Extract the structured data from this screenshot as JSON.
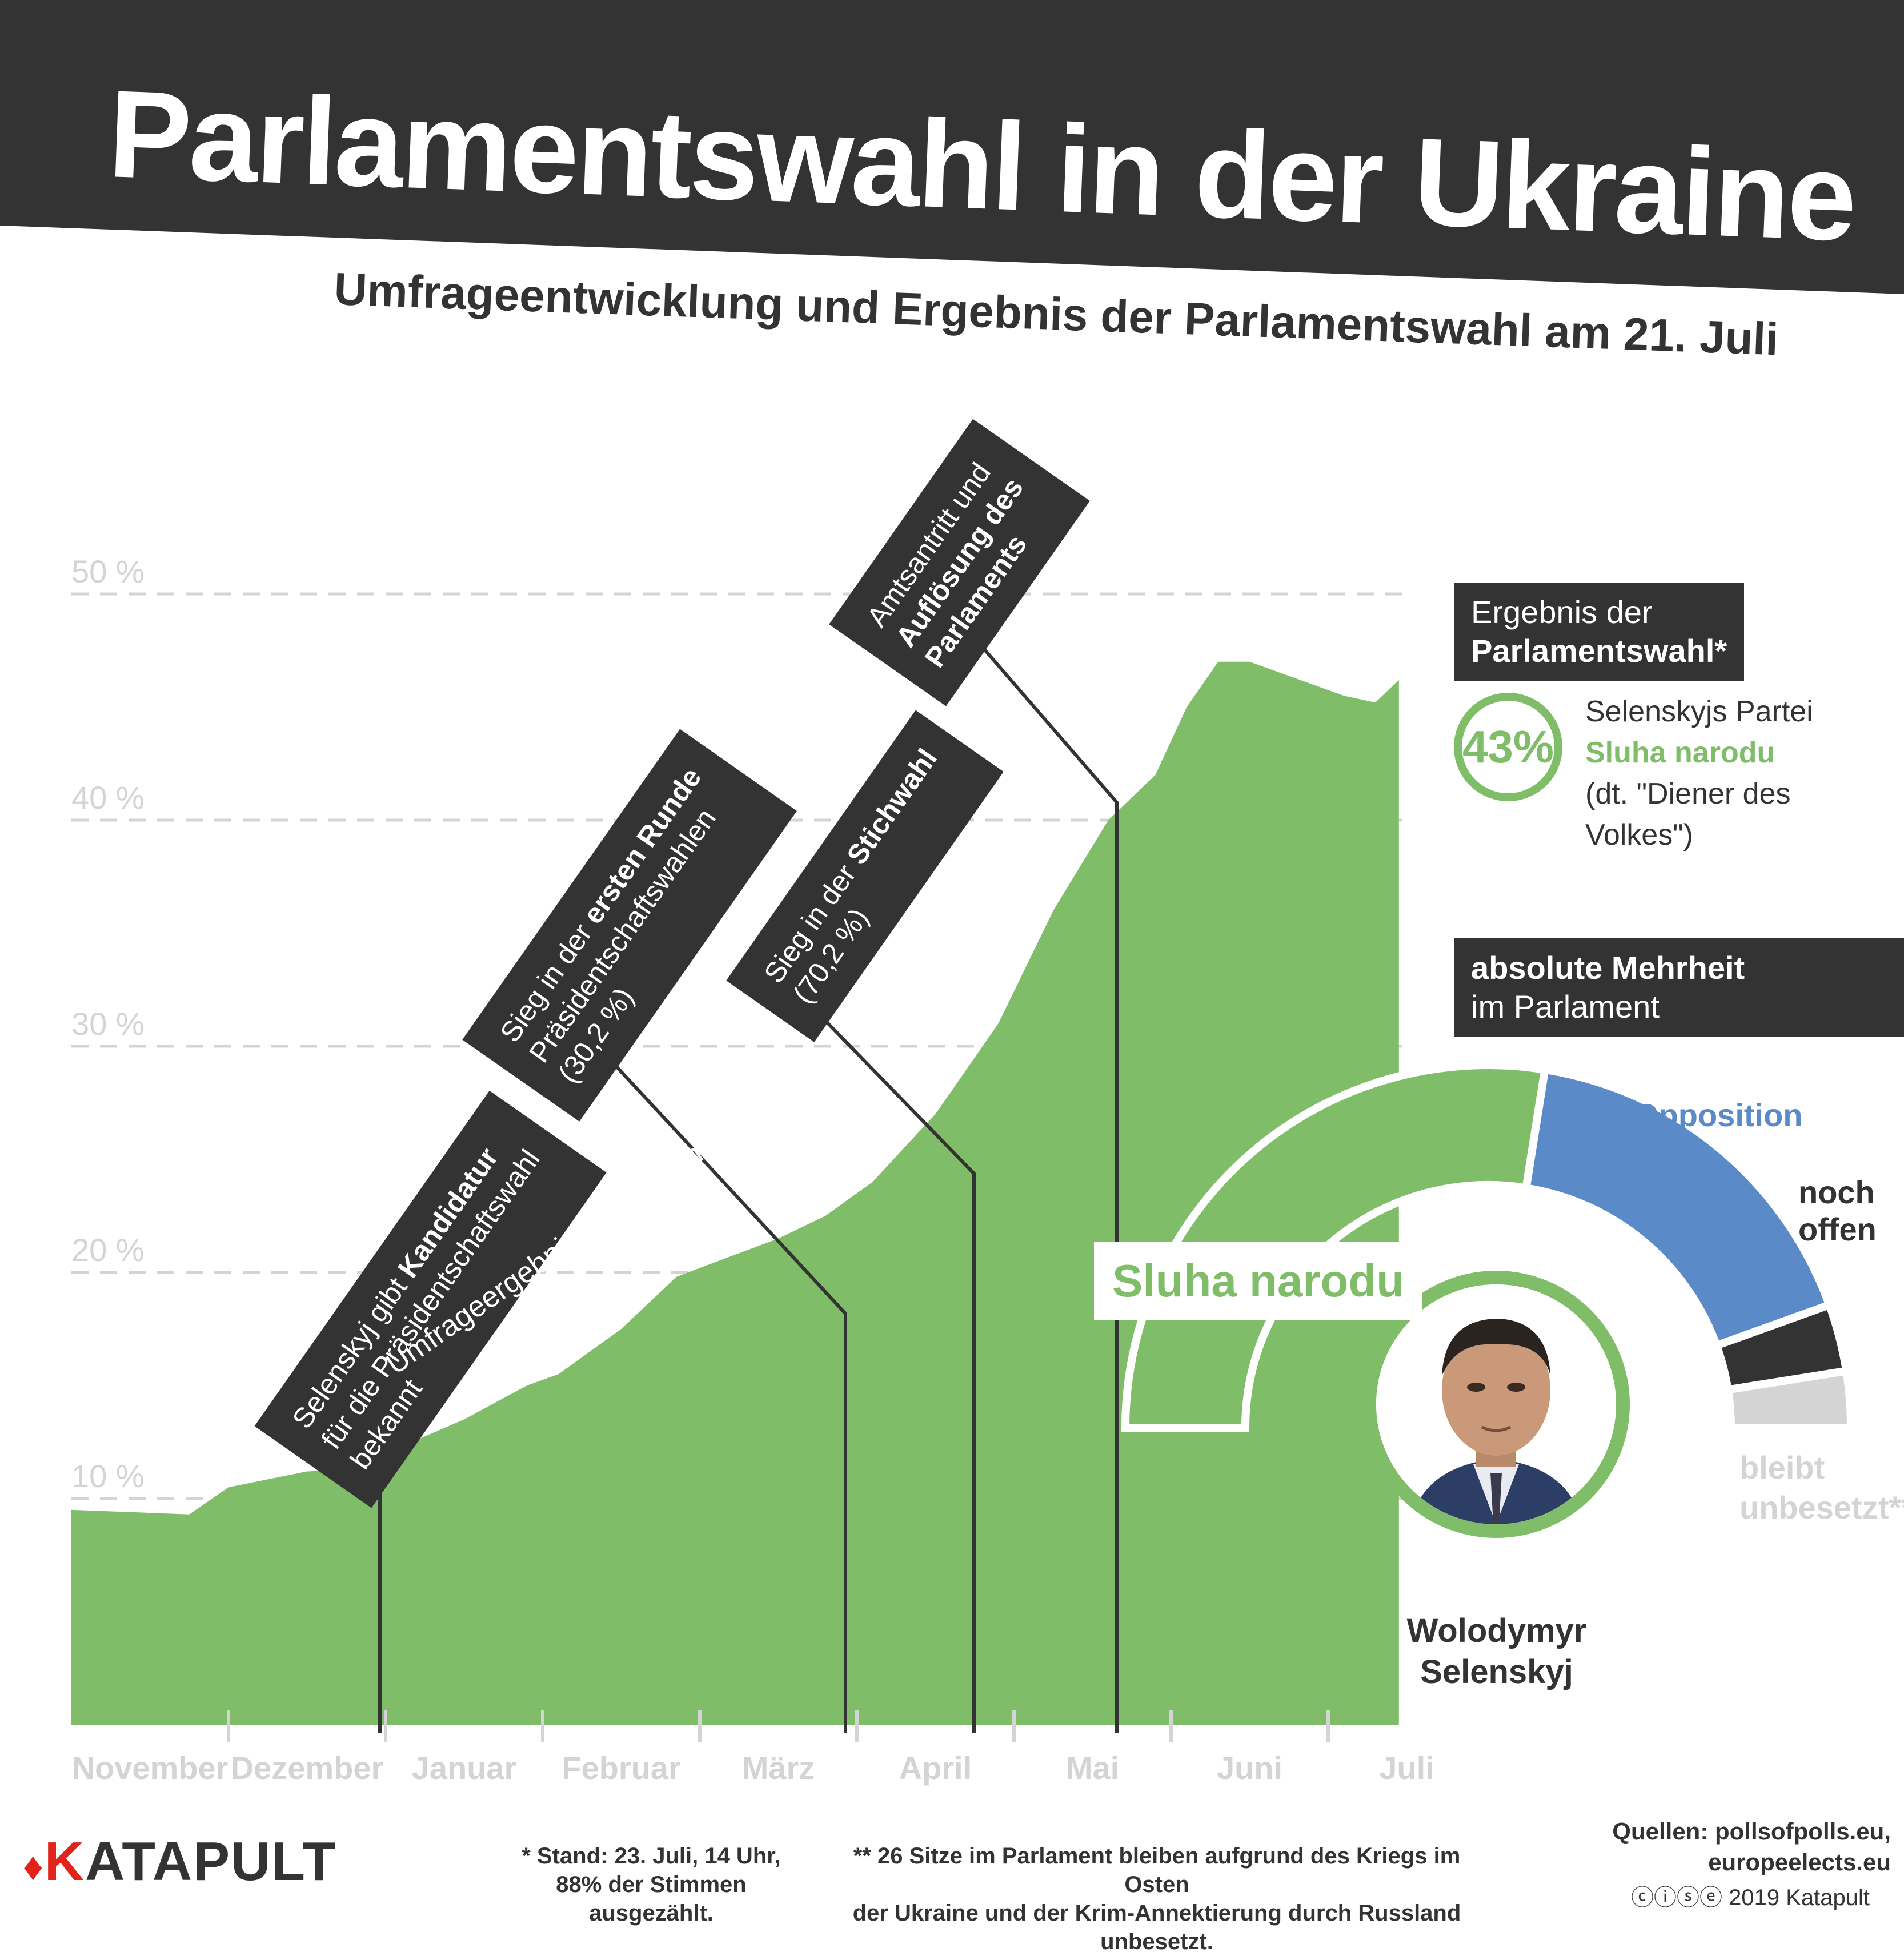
{
  "title": "Parlamentswahl in der Ukraine",
  "subtitle": "Umfrageentwicklung und Ergebnis der Parlamentswahl am 21. Juli",
  "chart_data": {
    "type": "area",
    "series": [
      {
        "name": "Umfrageergebnisse der Sluha narodu",
        "x": [
          0,
          0.75,
          1,
          1.5,
          1.85,
          2,
          2.5,
          2.9,
          3.1,
          3.5,
          3.85,
          4,
          4.5,
          4.8,
          5.1,
          5.5,
          5.9,
          6.25,
          6.6,
          6.9,
          7.1,
          7.3,
          7.5,
          7.7,
          7.9,
          8.1,
          8.3,
          8.45
        ],
        "values": [
          9.5,
          9.3,
          10.5,
          11.2,
          11.3,
          12,
          13.5,
          15,
          15.5,
          17.5,
          19.8,
          20.2,
          21.5,
          22.5,
          24,
          27,
          31,
          36,
          40,
          42,
          45,
          47,
          47,
          46.5,
          46,
          45.5,
          45.2,
          46.2
        ]
      }
    ],
    "months": [
      "November",
      "Dezember",
      "Januar",
      "Februar",
      "März",
      "April",
      "Mai",
      "Juni",
      "Juli"
    ],
    "ylim": [
      0,
      51
    ],
    "yticks": [
      "10 %",
      "20 %",
      "30 %",
      "40 %",
      "50 %"
    ],
    "grid": true
  },
  "series_label": "Umfrageergebnisse der Sluha narodu",
  "events": {
    "kandidatur": {
      "pre": "Selenskyj gibt ",
      "bold": "Kandidatur",
      "line2": "für die Präsidentschaftswahl",
      "line3": "bekannt"
    },
    "runde": {
      "pre": "Sieg in der ",
      "bold": "ersten Runde",
      "line2": "Präsidentschaftswahlen",
      "line3": "(30,2 %)"
    },
    "stichwahl": {
      "pre": "Sieg in der ",
      "bold": "Stichwahl",
      "line2": "(70,2 %)"
    },
    "parlament": {
      "line1": "Amtsantritt und",
      "bold1": "Auflösung des",
      "bold2": "Parlaments"
    }
  },
  "result": {
    "heading1": "Ergebnis der",
    "heading2": "Parlamentswahl*",
    "percent": "43%",
    "line1": "Selenskyjs Partei",
    "party": "Sluha narodu",
    "line3": "(dt. \"Diener des Volkes\")"
  },
  "majority": {
    "bold": "absolute Mehrheit",
    "rest": "im Parlament"
  },
  "seats": {
    "sluha_label": "Sluha narodu",
    "opposition_label": "Opposition",
    "open_label": "noch offen",
    "vacant_label1": "bleibt",
    "vacant_label2": "unbesetzt**",
    "shares": [
      0.55,
      0.34,
      0.06,
      0.05
    ],
    "colors": [
      "#80bd69",
      "#5b8ac9",
      "#333333",
      "#d4d4d4"
    ]
  },
  "person": {
    "line1": "Wolodymyr",
    "line2": "Selenskyj"
  },
  "footer": {
    "logo_k": "K",
    "logo_rest": "ATAPULT",
    "footnote1_line1": "* Stand: 23. Juli, 14 Uhr,",
    "footnote1_line2": "88% der Stimmen ausgezählt.",
    "footnote2_line1": "** 26 Sitze im Parlament bleiben aufgrund des Kriegs im Osten",
    "footnote2_line2": "der Ukraine und der Krim-Annektierung durch Russland unbesetzt.",
    "sources_line1": "Quellen: pollsofpolls.eu,",
    "sources_line2": "europeelects.eu",
    "license": "ⓒⓘⓢⓔ 2019 Katapult"
  },
  "colors": {
    "green": "#80bd69",
    "dark": "#333333",
    "blue": "#5b8ac9",
    "grey": "#d4d4d4"
  }
}
